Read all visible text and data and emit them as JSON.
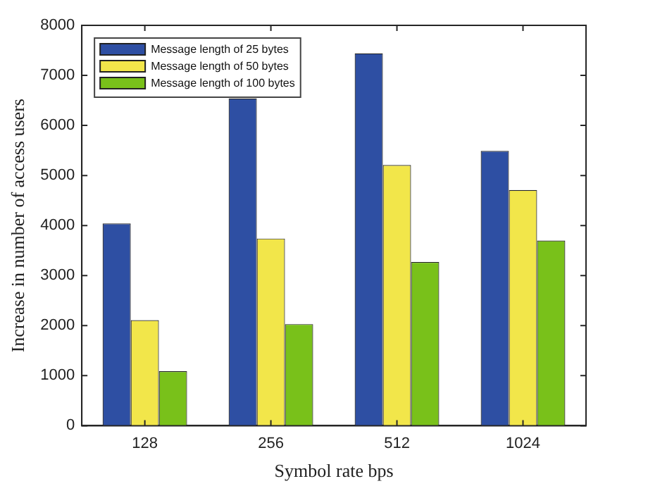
{
  "chart_data": {
    "type": "bar",
    "xlabel": "Symbol rate bps",
    "ylabel": "Increase in number of access users",
    "categories": [
      "128",
      "256",
      "512",
      "1024"
    ],
    "series": [
      {
        "name": "Message length of 25 bytes",
        "color": "#2e4fa3",
        "values": [
          4040,
          6540,
          7440,
          5490
        ]
      },
      {
        "name": "Message length of 50 bytes",
        "color": "#f2e64a",
        "values": [
          2110,
          3740,
          5210,
          4710
        ]
      },
      {
        "name": "Message length of 100 bytes",
        "color": "#79c11a",
        "values": [
          1090,
          2030,
          3270,
          3700
        ]
      }
    ],
    "ylim": [
      0,
      8000
    ],
    "yticks": [
      0,
      1000,
      2000,
      3000,
      4000,
      5000,
      6000,
      7000,
      8000
    ],
    "grid": false,
    "legend": "top left"
  }
}
